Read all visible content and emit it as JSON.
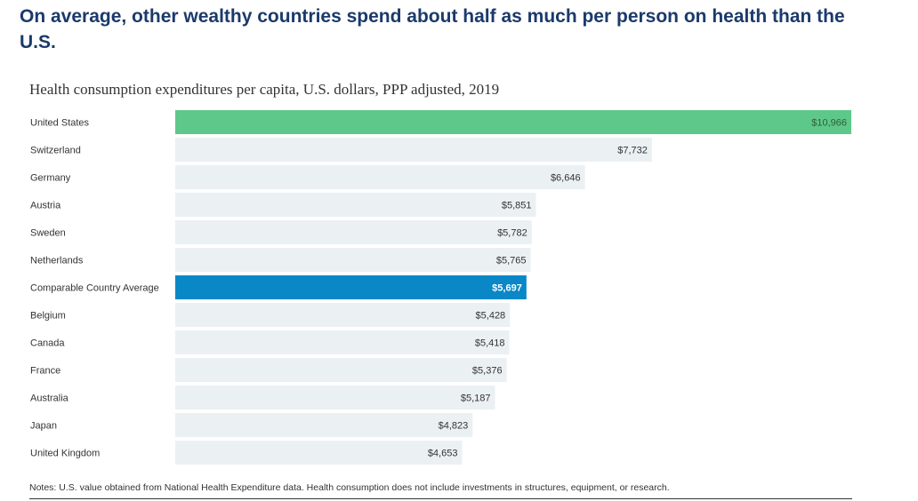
{
  "headline": "On average, other wealthy countries spend about half as much per person on health than the U.S.",
  "chart_data": {
    "type": "bar",
    "orientation": "horizontal",
    "title": "Health consumption expenditures per capita, U.S. dollars, PPP adjusted, 2019",
    "categories": [
      "United States",
      "Switzerland",
      "Germany",
      "Austria",
      "Sweden",
      "Netherlands",
      "Comparable Country Average",
      "Belgium",
      "Canada",
      "France",
      "Australia",
      "Japan",
      "United Kingdom"
    ],
    "values": [
      10966,
      7732,
      6646,
      5851,
      5782,
      5765,
      5697,
      5428,
      5418,
      5376,
      5187,
      4823,
      4653
    ],
    "value_labels": [
      "$10,966",
      "$7,732",
      "$6,646",
      "$5,851",
      "$5,782",
      "$5,765",
      "$5,697",
      "$5,428",
      "$5,418",
      "$5,376",
      "$5,187",
      "$4,823",
      "$4,653"
    ],
    "xlim": [
      0,
      10966
    ],
    "colors": {
      "default": "#ebf0f3",
      "United States": "#5ec88a",
      "Comparable Country Average": "#0a87c6"
    },
    "grid": false
  },
  "notes": "Notes: U.S. value obtained from National Health Expenditure data. Health consumption does not include investments in structures, equipment, or research."
}
